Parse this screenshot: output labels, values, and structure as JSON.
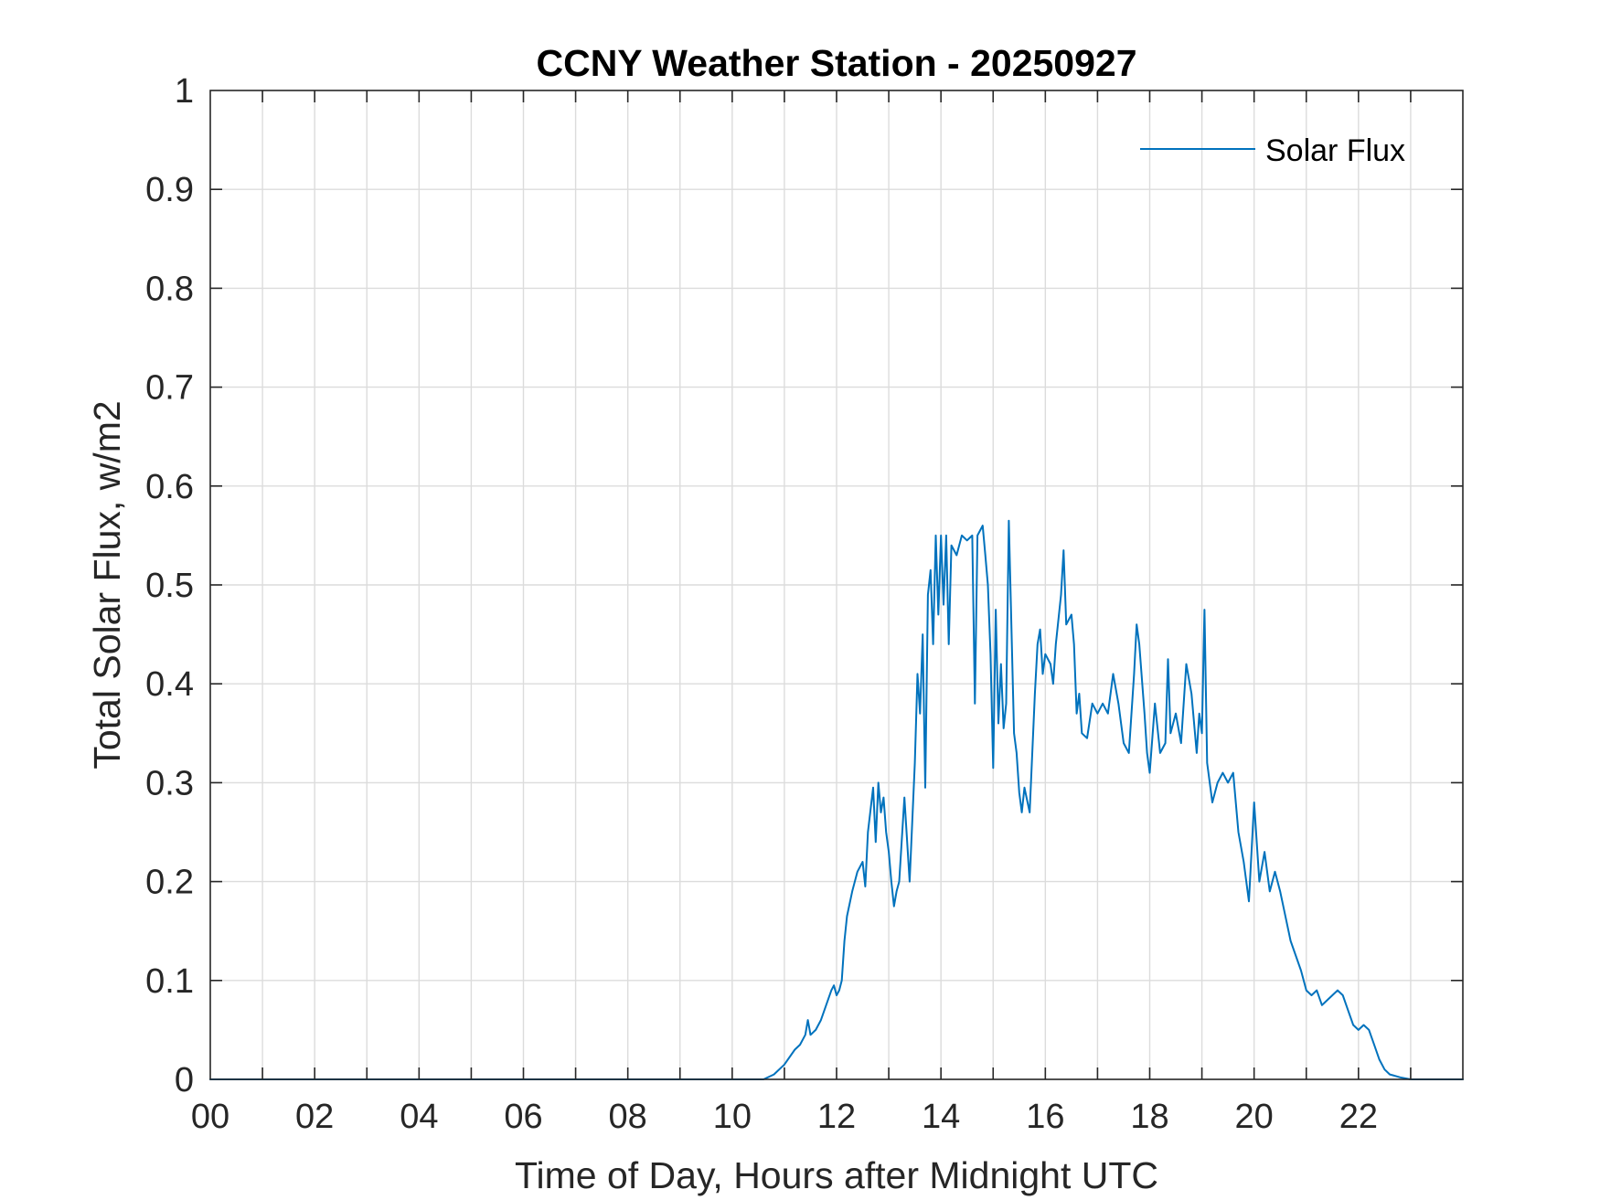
{
  "chart_data": {
    "type": "line",
    "title": "CCNY Weather Station - 20250927",
    "xlabel": "Time of Day, Hours after Midnight UTC",
    "ylabel": "Total Solar Flux, w/m2",
    "xlim": [
      0,
      24
    ],
    "ylim": [
      0,
      1
    ],
    "x_ticks": [
      0,
      2,
      4,
      6,
      8,
      10,
      12,
      14,
      16,
      18,
      20,
      22
    ],
    "x_tick_labels": [
      "00",
      "02",
      "04",
      "06",
      "08",
      "10",
      "12",
      "14",
      "16",
      "18",
      "20",
      "22"
    ],
    "x_grid_step": 1,
    "y_ticks": [
      0,
      0.1,
      0.2,
      0.3,
      0.4,
      0.5,
      0.6,
      0.7,
      0.8,
      0.9,
      1
    ],
    "y_tick_labels": [
      "0",
      "0.1",
      "0.2",
      "0.3",
      "0.4",
      "0.5",
      "0.6",
      "0.7",
      "0.8",
      "0.9",
      "1"
    ],
    "grid": true,
    "legend": "top-right",
    "series": [
      {
        "name": "Solar Flux",
        "color": "#0072BD",
        "x": [
          0,
          10.6,
          10.8,
          11.0,
          11.2,
          11.3,
          11.4,
          11.45,
          11.5,
          11.6,
          11.7,
          11.8,
          11.9,
          11.95,
          12.0,
          12.05,
          12.1,
          12.15,
          12.2,
          12.3,
          12.4,
          12.5,
          12.55,
          12.6,
          12.7,
          12.75,
          12.8,
          12.85,
          12.9,
          12.95,
          13.0,
          13.05,
          13.1,
          13.15,
          13.2,
          13.3,
          13.4,
          13.5,
          13.55,
          13.6,
          13.65,
          13.7,
          13.75,
          13.8,
          13.85,
          13.9,
          13.95,
          14.0,
          14.05,
          14.1,
          14.15,
          14.2,
          14.3,
          14.4,
          14.5,
          14.6,
          14.65,
          14.7,
          14.8,
          14.85,
          14.9,
          14.95,
          15.0,
          15.05,
          15.1,
          15.15,
          15.2,
          15.25,
          15.3,
          15.4,
          15.45,
          15.5,
          15.55,
          15.6,
          15.7,
          15.8,
          15.85,
          15.9,
          15.95,
          16.0,
          16.1,
          16.15,
          16.2,
          16.3,
          16.35,
          16.4,
          16.5,
          16.55,
          16.6,
          16.65,
          16.7,
          16.8,
          16.9,
          17.0,
          17.1,
          17.2,
          17.3,
          17.4,
          17.5,
          17.6,
          17.7,
          17.75,
          17.8,
          17.9,
          17.95,
          18.0,
          18.1,
          18.2,
          18.3,
          18.35,
          18.4,
          18.5,
          18.6,
          18.7,
          18.8,
          18.9,
          18.95,
          19.0,
          19.05,
          19.1,
          19.2,
          19.3,
          19.4,
          19.5,
          19.6,
          19.7,
          19.8,
          19.9,
          20.0,
          20.1,
          20.2,
          20.3,
          20.4,
          20.5,
          20.7,
          20.9,
          21.0,
          21.1,
          21.2,
          21.3,
          21.4,
          21.5,
          21.6,
          21.7,
          21.8,
          21.9,
          22.0,
          22.1,
          22.2,
          22.3,
          22.4,
          22.5,
          22.6,
          22.8,
          23.0,
          24.0
        ],
        "y": [
          0,
          0,
          0.005,
          0.015,
          0.03,
          0.035,
          0.045,
          0.06,
          0.045,
          0.05,
          0.06,
          0.075,
          0.09,
          0.095,
          0.085,
          0.09,
          0.1,
          0.14,
          0.165,
          0.19,
          0.21,
          0.22,
          0.195,
          0.25,
          0.295,
          0.24,
          0.3,
          0.27,
          0.285,
          0.25,
          0.23,
          0.2,
          0.175,
          0.19,
          0.2,
          0.285,
          0.2,
          0.32,
          0.41,
          0.37,
          0.45,
          0.295,
          0.49,
          0.515,
          0.44,
          0.55,
          0.47,
          0.55,
          0.48,
          0.55,
          0.44,
          0.54,
          0.53,
          0.55,
          0.545,
          0.55,
          0.38,
          0.55,
          0.56,
          0.53,
          0.5,
          0.43,
          0.315,
          0.475,
          0.36,
          0.42,
          0.355,
          0.38,
          0.565,
          0.35,
          0.33,
          0.29,
          0.27,
          0.295,
          0.27,
          0.39,
          0.44,
          0.455,
          0.41,
          0.43,
          0.42,
          0.4,
          0.44,
          0.49,
          0.535,
          0.46,
          0.47,
          0.44,
          0.37,
          0.39,
          0.35,
          0.345,
          0.38,
          0.37,
          0.38,
          0.37,
          0.41,
          0.38,
          0.34,
          0.33,
          0.41,
          0.46,
          0.44,
          0.37,
          0.33,
          0.31,
          0.38,
          0.33,
          0.34,
          0.425,
          0.35,
          0.37,
          0.34,
          0.42,
          0.39,
          0.33,
          0.37,
          0.35,
          0.475,
          0.32,
          0.28,
          0.3,
          0.31,
          0.3,
          0.31,
          0.25,
          0.22,
          0.18,
          0.28,
          0.2,
          0.23,
          0.19,
          0.21,
          0.19,
          0.14,
          0.11,
          0.09,
          0.085,
          0.09,
          0.075,
          0.08,
          0.085,
          0.09,
          0.085,
          0.07,
          0.055,
          0.05,
          0.055,
          0.05,
          0.035,
          0.02,
          0.01,
          0.005,
          0.002,
          0,
          0
        ]
      }
    ]
  }
}
